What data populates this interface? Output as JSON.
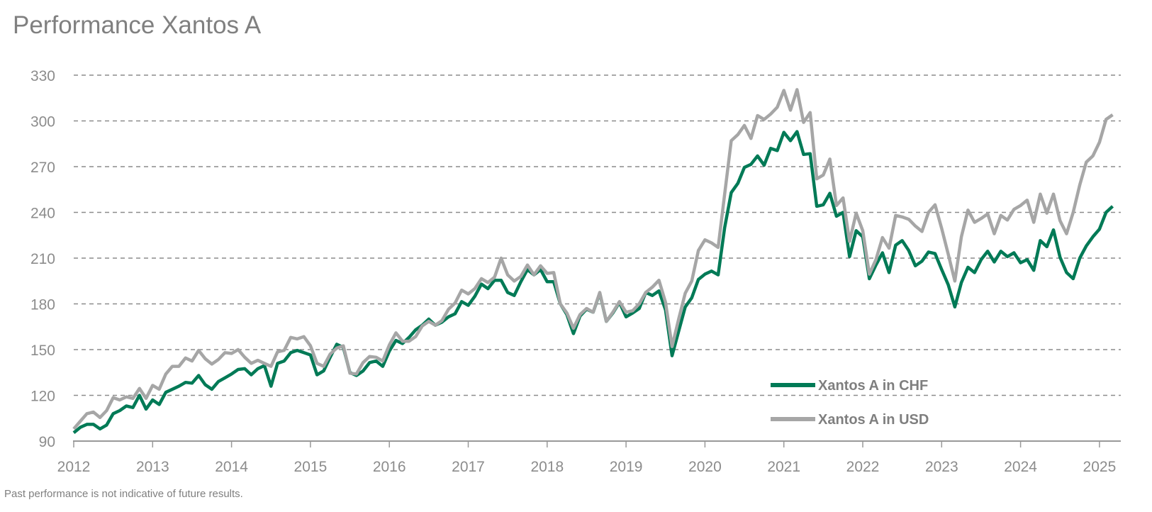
{
  "title": "Performance Xantos A",
  "footnote": "Past performance is not indicative of future results.",
  "chart_data": {
    "type": "line",
    "title": "Performance Xantos A",
    "xlabel": "",
    "ylabel": "",
    "x_start": "2012-01",
    "x_frequency": "monthly",
    "xlim": [
      2012,
      2025.3
    ],
    "ylim": [
      90,
      330
    ],
    "y_ticks": [
      90,
      120,
      150,
      180,
      210,
      240,
      270,
      300,
      330
    ],
    "x_ticks": [
      "2012",
      "2013",
      "2014",
      "2015",
      "2016",
      "2017",
      "2018",
      "2019",
      "2020",
      "2021",
      "2022",
      "2023",
      "2024",
      "2025"
    ],
    "grid": "horizontal dashed",
    "legend_position": "bottom-right",
    "series": [
      {
        "name": "Xantos A in CHF",
        "color": "#007a56",
        "values": [
          95.5,
          99,
          101,
          101,
          98,
          100.5,
          108,
          110,
          113,
          112,
          120,
          111,
          117,
          114,
          122,
          124,
          126,
          128.5,
          128,
          133,
          127,
          124,
          129,
          131.5,
          134,
          137,
          137.5,
          133.5,
          137.5,
          139.5,
          126,
          141,
          142.5,
          148,
          149.5,
          148,
          146.5,
          133.5,
          136,
          145,
          153.5,
          151.5,
          135,
          133,
          136,
          141.5,
          142.5,
          139,
          149,
          156,
          154,
          158,
          163,
          166,
          170,
          166,
          168,
          171.5,
          173.5,
          181.5,
          179,
          185,
          193,
          190,
          195.5,
          195.5,
          187.5,
          185.5,
          194.5,
          202.5,
          199,
          202.5,
          194.5,
          194.5,
          180,
          173,
          160.5,
          172,
          176.5,
          174.5,
          187,
          168.5,
          174,
          181,
          171.5,
          174,
          177,
          187.5,
          185.5,
          188.5,
          176,
          146,
          162,
          178,
          184,
          196,
          199.5,
          201.5,
          199,
          230,
          253,
          259,
          269.5,
          271.5,
          277,
          271,
          282,
          280.5,
          292.5,
          287,
          293,
          278,
          278.5,
          244,
          245,
          252.5,
          237.5,
          240,
          211,
          228,
          224,
          196.5,
          205.5,
          213.5,
          200.5,
          218.5,
          221.5,
          215,
          205,
          208,
          214,
          213,
          202.5,
          192.5,
          178,
          194,
          204,
          200.5,
          209,
          214.5,
          207.5,
          214.5,
          211,
          213.5,
          207,
          209,
          202,
          221.5,
          217.5,
          228.5,
          210.5,
          200.5,
          196.5,
          210,
          218,
          224,
          229,
          240,
          244
        ]
      },
      {
        "name": "Xantos A in USD",
        "color": "#a6a6a6",
        "values": [
          98,
          103,
          108,
          109,
          105.5,
          110,
          118.5,
          117,
          119,
          118,
          124.5,
          118,
          126.5,
          124,
          134,
          139,
          139,
          144.5,
          142.5,
          149.5,
          144,
          140.5,
          143.5,
          148,
          147.5,
          150,
          145,
          141,
          143,
          141,
          139,
          148.5,
          149.5,
          158,
          157,
          158.5,
          152.5,
          141,
          139,
          147,
          151,
          152.5,
          134.5,
          134,
          141.5,
          145.5,
          145,
          142.5,
          153,
          161,
          155.5,
          155.5,
          158.5,
          165.5,
          168.5,
          166,
          169,
          176.5,
          180.5,
          189,
          186.5,
          190,
          196.5,
          194,
          197.5,
          210,
          199,
          195,
          198,
          205.5,
          199,
          205,
          200,
          200.5,
          180,
          174,
          164,
          173,
          177,
          174.5,
          187.5,
          168.5,
          174.5,
          181.5,
          174.5,
          175.5,
          180,
          187.5,
          191,
          195.5,
          181,
          152,
          170,
          187,
          195,
          215,
          222,
          220,
          217,
          252,
          287,
          291,
          297,
          288.5,
          303.5,
          301,
          304.5,
          309,
          320,
          307,
          320.5,
          299,
          305.5,
          262,
          264.5,
          275,
          244.5,
          249.5,
          221,
          239.5,
          228,
          199.5,
          209,
          223.5,
          216.5,
          238,
          237,
          235.5,
          231,
          227.5,
          240,
          245,
          229.5,
          212.5,
          195,
          224,
          241.5,
          233.5,
          236,
          239,
          226,
          238,
          235,
          242,
          244.5,
          248,
          233.5,
          252,
          239.5,
          252,
          234.5,
          226,
          240,
          258,
          273,
          277,
          286,
          301,
          304
        ]
      }
    ]
  }
}
